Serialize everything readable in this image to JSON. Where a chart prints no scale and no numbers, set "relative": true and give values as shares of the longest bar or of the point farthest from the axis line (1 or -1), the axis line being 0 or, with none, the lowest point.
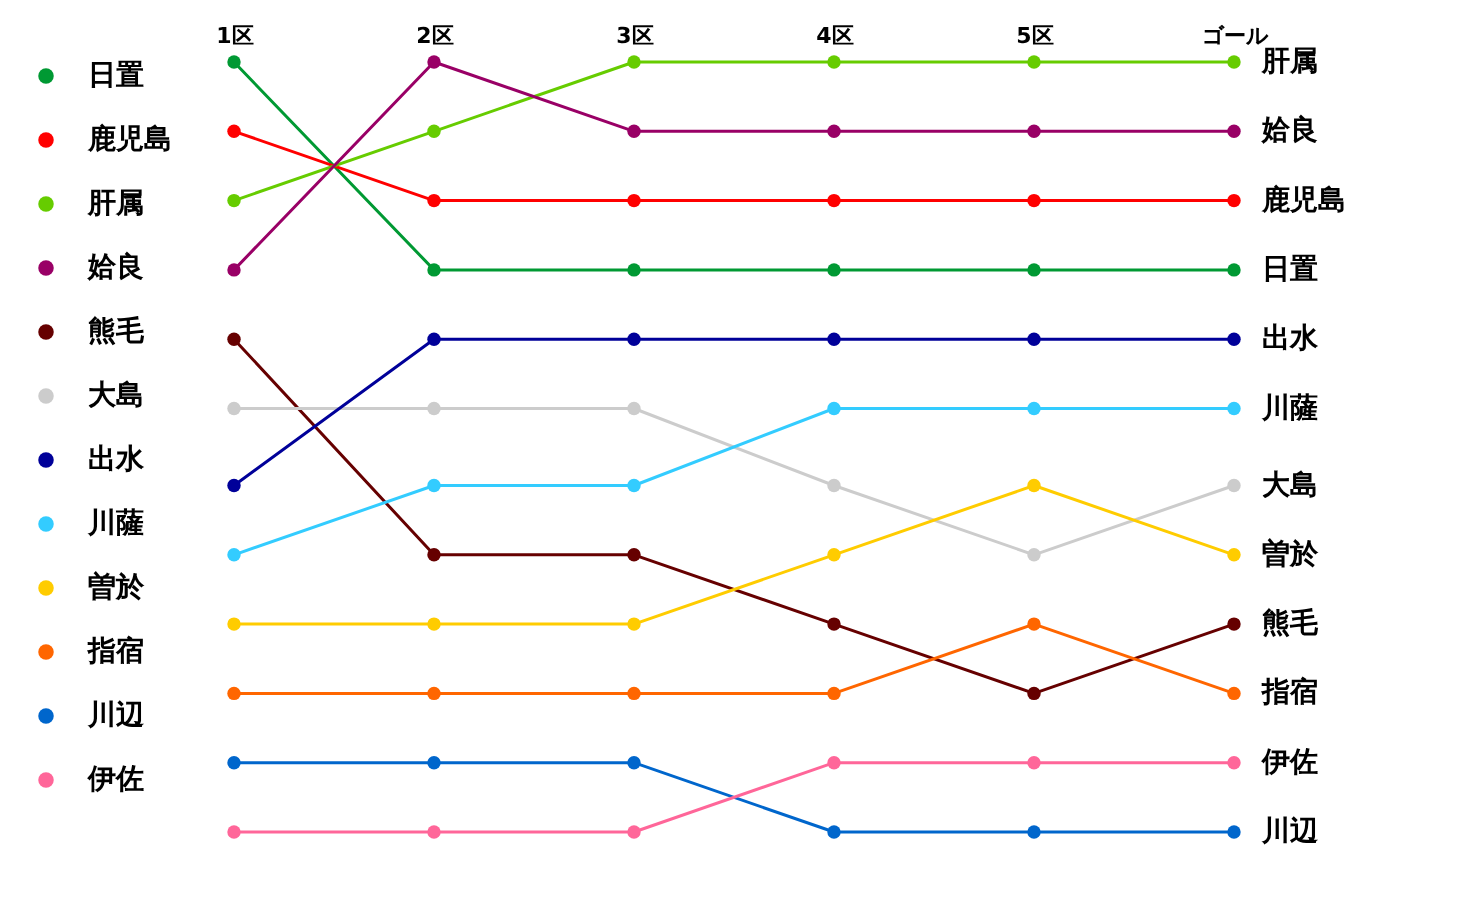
{
  "chart_data": {
    "type": "line",
    "relative": true,
    "categories": [
      "1区",
      "2区",
      "3区",
      "4区",
      "5区",
      "ゴール"
    ],
    "grid": false,
    "legend": "left",
    "marker": "circle",
    "series": [
      {
        "name": "日置",
        "color": "#009933",
        "values": [
          1,
          0.73,
          0.73,
          0.73,
          0.73,
          0.73
        ]
      },
      {
        "name": "鹿児島",
        "color": "#ff0000",
        "values": [
          0.91,
          0.82,
          0.82,
          0.82,
          0.82,
          0.82
        ]
      },
      {
        "name": "肝属",
        "color": "#66cc00",
        "values": [
          0.82,
          0.91,
          1,
          1,
          1,
          1
        ]
      },
      {
        "name": "姶良",
        "color": "#990066",
        "values": [
          0.73,
          1,
          0.91,
          0.91,
          0.91,
          0.91
        ]
      },
      {
        "name": "熊毛",
        "color": "#660000",
        "values": [
          0.64,
          0.36,
          0.36,
          0.27,
          0.18,
          0.27
        ]
      },
      {
        "name": "大島",
        "color": "#cccccc",
        "values": [
          0.55,
          0.55,
          0.55,
          0.45,
          0.36,
          0.45
        ]
      },
      {
        "name": "出水",
        "color": "#000099",
        "values": [
          0.45,
          0.64,
          0.64,
          0.64,
          0.64,
          0.64
        ]
      },
      {
        "name": "川薩",
        "color": "#33ccff",
        "values": [
          0.36,
          0.45,
          0.45,
          0.55,
          0.55,
          0.55
        ]
      },
      {
        "name": "曽於",
        "color": "#ffcc00",
        "values": [
          0.27,
          0.27,
          0.27,
          0.36,
          0.45,
          0.36
        ]
      },
      {
        "name": "指宿",
        "color": "#ff6600",
        "values": [
          0.18,
          0.18,
          0.18,
          0.18,
          0.27,
          0.18
        ]
      },
      {
        "name": "川辺",
        "color": "#0066cc",
        "values": [
          0.09,
          0.09,
          0.09,
          0,
          0,
          0
        ]
      },
      {
        "name": "伊佐",
        "color": "#ff6699",
        "values": [
          0,
          0,
          0,
          0.09,
          0.09,
          0.09
        ]
      }
    ]
  }
}
